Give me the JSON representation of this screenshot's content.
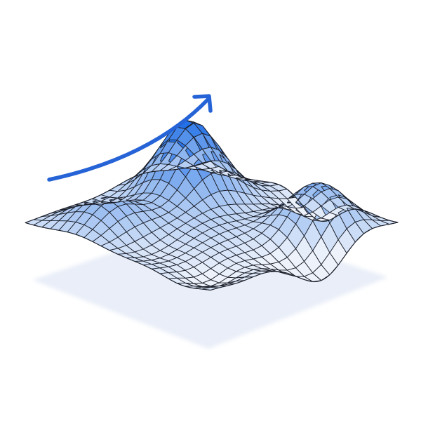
{
  "illustration": {
    "subject": "3d-wireframe-surface-with-upward-arrow",
    "colors": {
      "background": "#ffffff",
      "shadow": "#e9eef8",
      "arrow": "#2563d6",
      "mesh_line": "#1b1f2a",
      "surface_peak": "#1f6fe8",
      "surface_mid": "#8db5ef",
      "surface_low": "#eef3fb"
    },
    "icons": [
      "trend-up-arrow-icon"
    ]
  }
}
